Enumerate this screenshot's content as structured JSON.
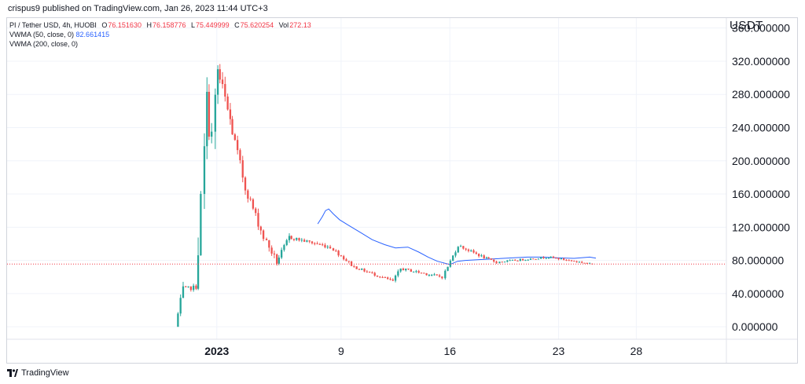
{
  "header": {
    "published": "crispus9 published on TradingView.com, Jan 26, 2023 11:44 UTC+3"
  },
  "legend": {
    "symbol": "PI / Tether USD, 4h, HUOBI",
    "o_key": "O",
    "o_val": "76.151630",
    "h_key": "H",
    "h_val": "76.158776",
    "l_key": "L",
    "l_val": "75.449999",
    "c_key": "C",
    "c_val": "75.620254",
    "vol_key": "Vol",
    "vol_val": "272.13",
    "vwma50_label": "VWMA (50, close, 0)",
    "vwma50_value": "82.661415",
    "vwma200_label": "VWMA (200, close, 0)"
  },
  "currency": "USDT",
  "footer": {
    "brand": "TradingView"
  },
  "colors": {
    "up": "#26a69a",
    "down": "#ef5350",
    "vwma": "#2962ff",
    "price_line": "#f23645",
    "axis_text": "#131722"
  },
  "chart_data": {
    "type": "candlestick",
    "y_ticks": [
      "0.000000",
      "40.000000",
      "80.000000",
      "120.000000",
      "160.000000",
      "200.000000",
      "240.000000",
      "280.000000",
      "320.000000",
      "360.000000"
    ],
    "y_tick_values": [
      0,
      40,
      80,
      120,
      160,
      200,
      240,
      280,
      320,
      360
    ],
    "ylim": [
      -15,
      372
    ],
    "x_ticks": [
      "2023",
      "9",
      "16",
      "23",
      "28"
    ],
    "x_tick_days": [
      1,
      9,
      16,
      23,
      28
    ],
    "xlim_days": [
      -12.5,
      33.8
    ],
    "last_price": 75.62,
    "candles_per_day": 6,
    "segments": [
      {
        "from": -1.5,
        "to": -1.0,
        "start": 0,
        "end": 45,
        "vol": 10
      },
      {
        "from": -1.0,
        "to": -0.2,
        "start": 45,
        "end": 48,
        "vol": 5
      },
      {
        "from": -0.2,
        "to": 0.2,
        "start": 48,
        "end": 148,
        "vol": 40
      },
      {
        "from": 0.2,
        "to": 0.5,
        "start": 148,
        "end": 272,
        "vol": 35
      },
      {
        "from": 0.5,
        "to": 0.9,
        "start": 272,
        "end": 228,
        "vol": 45
      },
      {
        "from": 0.9,
        "to": 1.2,
        "start": 228,
        "end": 308,
        "vol": 40
      },
      {
        "from": 1.2,
        "to": 2.0,
        "start": 308,
        "end": 248,
        "vol": 25
      },
      {
        "from": 2.0,
        "to": 3.0,
        "start": 248,
        "end": 168,
        "vol": 14
      },
      {
        "from": 3.0,
        "to": 4.2,
        "start": 168,
        "end": 108,
        "vol": 10
      },
      {
        "from": 4.2,
        "to": 5.0,
        "start": 108,
        "end": 78,
        "vol": 8
      },
      {
        "from": 5.0,
        "to": 5.8,
        "start": 78,
        "end": 108,
        "vol": 6
      },
      {
        "from": 5.8,
        "to": 8.5,
        "start": 108,
        "end": 96,
        "vol": 4
      },
      {
        "from": 8.5,
        "to": 10.0,
        "start": 96,
        "end": 72,
        "vol": 4
      },
      {
        "from": 10.0,
        "to": 12.5,
        "start": 72,
        "end": 55,
        "vol": 3
      },
      {
        "from": 12.5,
        "to": 13.0,
        "start": 55,
        "end": 70,
        "vol": 4
      },
      {
        "from": 13.0,
        "to": 15.7,
        "start": 70,
        "end": 60,
        "vol": 3
      },
      {
        "from": 15.7,
        "to": 16.7,
        "start": 60,
        "end": 98,
        "vol": 4
      },
      {
        "from": 16.7,
        "to": 18.5,
        "start": 98,
        "end": 82,
        "vol": 3
      },
      {
        "from": 18.5,
        "to": 19.2,
        "start": 82,
        "end": 78,
        "vol": 3
      },
      {
        "from": 19.2,
        "to": 22.5,
        "start": 78,
        "end": 84,
        "vol": 2
      },
      {
        "from": 22.5,
        "to": 25.4,
        "start": 84,
        "end": 75.6,
        "vol": 2
      }
    ],
    "vwma50": [
      {
        "day": 7.5,
        "value": 124
      },
      {
        "day": 7.8,
        "value": 133
      },
      {
        "day": 8.0,
        "value": 140
      },
      {
        "day": 8.2,
        "value": 142
      },
      {
        "day": 8.5,
        "value": 136
      },
      {
        "day": 8.9,
        "value": 129
      },
      {
        "day": 9.5,
        "value": 122
      },
      {
        "day": 10.3,
        "value": 113
      },
      {
        "day": 11.0,
        "value": 105
      },
      {
        "day": 11.8,
        "value": 99
      },
      {
        "day": 12.5,
        "value": 95
      },
      {
        "day": 13.3,
        "value": 96
      },
      {
        "day": 14.0,
        "value": 90
      },
      {
        "day": 14.6,
        "value": 84
      },
      {
        "day": 15.2,
        "value": 79
      },
      {
        "day": 16.0,
        "value": 75
      },
      {
        "day": 16.5,
        "value": 79
      },
      {
        "day": 17.0,
        "value": 80
      },
      {
        "day": 18.0,
        "value": 81
      },
      {
        "day": 19.0,
        "value": 82
      },
      {
        "day": 20.0,
        "value": 83
      },
      {
        "day": 21.0,
        "value": 84
      },
      {
        "day": 22.0,
        "value": 84
      },
      {
        "day": 23.0,
        "value": 83
      },
      {
        "day": 24.0,
        "value": 82.5
      },
      {
        "day": 25.0,
        "value": 84
      },
      {
        "day": 25.4,
        "value": 82.66
      }
    ]
  }
}
